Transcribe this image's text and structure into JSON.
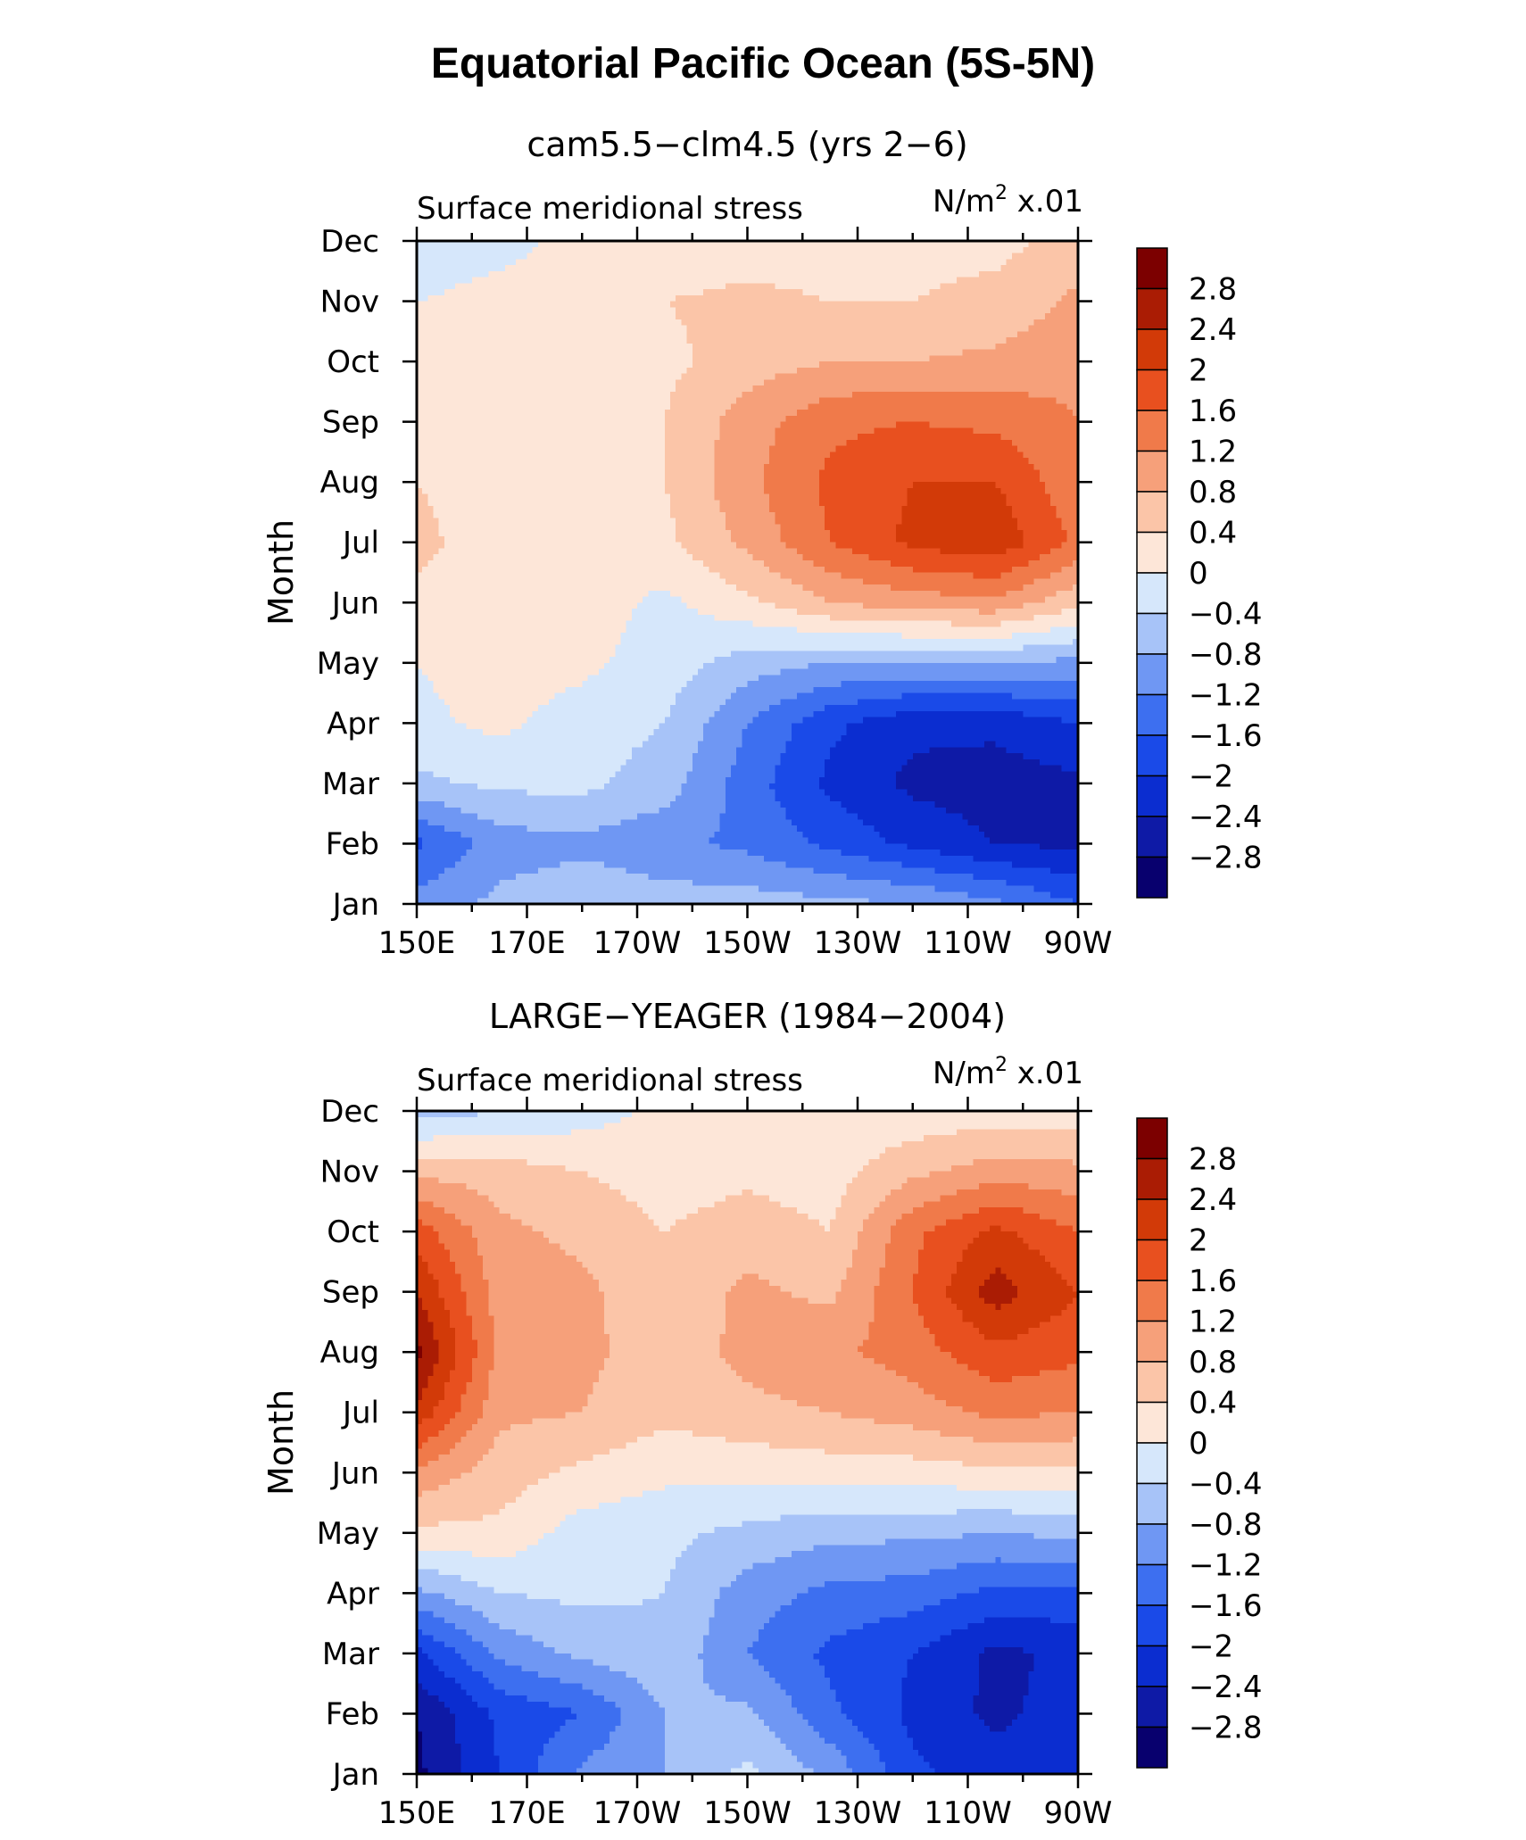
{
  "figure": {
    "title": "Equatorial Pacific Ocean (5S-5N)"
  },
  "chart_data": [
    {
      "type": "heatmap",
      "title": "cam5.5−clm4.5 (yrs 2−6)",
      "left_string": "Surface meridional stress",
      "units_base": "N/m",
      "units_sup": "2",
      "units_scale": " x.01",
      "ylabel": "Month",
      "x_ticks": [
        "150E",
        "170E",
        "170W",
        "150W",
        "130W",
        "110W",
        "90W"
      ],
      "x_tick_lons": [
        150,
        170,
        190,
        210,
        230,
        250,
        270
      ],
      "xlim": [
        150,
        270
      ],
      "y_ticks": [
        "Jan",
        "Feb",
        "Mar",
        "Apr",
        "May",
        "Jun",
        "Jul",
        "Aug",
        "Sep",
        "Oct",
        "Nov",
        "Dec"
      ],
      "ylim": [
        0,
        11
      ],
      "levels": [
        -2.8,
        -2.4,
        -2.0,
        -1.6,
        -1.2,
        -0.8,
        -0.4,
        0,
        0.4,
        0.8,
        1.2,
        1.6,
        2.0,
        2.4,
        2.8
      ],
      "colorbar_labels": [
        "2.8",
        "2.4",
        "2",
        "1.6",
        "1.2",
        "0.8",
        "0.4",
        "0",
        "−0.4",
        "−0.8",
        "−1.2",
        "−1.6",
        "−2",
        "−2.4",
        "−2.8"
      ],
      "colors": [
        "#08006e",
        "#0e1aa6",
        "#0b2dd0",
        "#1a4ae8",
        "#3d6ff0",
        "#6f97f3",
        "#a7c3f8",
        "#d6e7fb",
        "#fde6d8",
        "#fbc5a8",
        "#f6a07a",
        "#f07a4a",
        "#e8501f",
        "#d23a08",
        "#aa1c04",
        "#7c0000"
      ],
      "grid_x": [
        150,
        165,
        180,
        195,
        210,
        225,
        240,
        255,
        270
      ],
      "grid_y": [
        "Jan",
        "Feb",
        "Mar",
        "Apr",
        "May",
        "Jun",
        "Jul",
        "Aug",
        "Sep",
        "Oct",
        "Nov",
        "Dec"
      ],
      "z": [
        [
          -1.0,
          -0.7,
          -0.5,
          -0.6,
          -0.6,
          -0.7,
          -0.8,
          -1.1,
          -1.6
        ],
        [
          -1.7,
          -1.0,
          -0.9,
          -1.1,
          -1.3,
          -1.7,
          -2.1,
          -2.4,
          -2.5
        ],
        [
          -0.5,
          -0.3,
          -0.3,
          -0.6,
          -1.4,
          -2.1,
          -2.5,
          -2.6,
          -2.5
        ],
        [
          -0.1,
          0.1,
          -0.2,
          -0.4,
          -1.2,
          -1.9,
          -2.3,
          -2.3,
          -2.0
        ],
        [
          0.0,
          0.2,
          0.1,
          -0.2,
          -0.6,
          -0.8,
          -0.8,
          -0.8,
          -0.9
        ],
        [
          0.3,
          0.2,
          0.2,
          -0.1,
          0.3,
          0.8,
          1.0,
          1.1,
          0.5
        ],
        [
          0.5,
          0.2,
          0.2,
          0.3,
          0.9,
          1.6,
          2.1,
          2.3,
          1.5
        ],
        [
          0.4,
          0.2,
          0.2,
          0.4,
          1.1,
          1.7,
          2.0,
          2.0,
          1.3
        ],
        [
          0.4,
          0.1,
          0.1,
          0.4,
          1.0,
          1.5,
          1.6,
          1.5,
          1.2
        ],
        [
          0.2,
          0.1,
          0.1,
          0.3,
          0.6,
          0.8,
          0.8,
          0.9,
          1.1
        ],
        [
          0.0,
          0.1,
          0.1,
          0.4,
          0.5,
          0.4,
          0.4,
          0.5,
          0.9
        ],
        [
          -0.2,
          -0.1,
          0.1,
          0.1,
          0.2,
          0.2,
          0.3,
          0.3,
          0.5
        ]
      ]
    },
    {
      "type": "heatmap",
      "title": "LARGE−YEAGER (1984−2004)",
      "left_string": "Surface meridional stress",
      "units_base": "N/m",
      "units_sup": "2",
      "units_scale": " x.01",
      "ylabel": "Month",
      "x_ticks": [
        "150E",
        "170E",
        "170W",
        "150W",
        "130W",
        "110W",
        "90W"
      ],
      "x_tick_lons": [
        150,
        170,
        190,
        210,
        230,
        250,
        270
      ],
      "xlim": [
        150,
        270
      ],
      "y_ticks": [
        "Jan",
        "Feb",
        "Mar",
        "Apr",
        "May",
        "Jun",
        "Jul",
        "Aug",
        "Sep",
        "Oct",
        "Nov",
        "Dec"
      ],
      "ylim": [
        0,
        11
      ],
      "levels": [
        -2.8,
        -2.4,
        -2.0,
        -1.6,
        -1.2,
        -0.8,
        -0.4,
        0,
        0.4,
        0.8,
        1.2,
        1.6,
        2.0,
        2.4,
        2.8
      ],
      "colorbar_labels": [
        "2.8",
        "2.4",
        "2",
        "1.6",
        "1.2",
        "0.8",
        "0.4",
        "0",
        "−0.4",
        "−0.8",
        "−1.2",
        "−1.6",
        "−2",
        "−2.4",
        "−2.8"
      ],
      "colors": [
        "#08006e",
        "#0e1aa6",
        "#0b2dd0",
        "#1a4ae8",
        "#3d6ff0",
        "#6f97f3",
        "#a7c3f8",
        "#d6e7fb",
        "#fde6d8",
        "#fbc5a8",
        "#f6a07a",
        "#f07a4a",
        "#e8501f",
        "#d23a08",
        "#aa1c04",
        "#7c0000"
      ],
      "grid_x": [
        150,
        165,
        180,
        195,
        210,
        225,
        240,
        255,
        270
      ],
      "grid_y": [
        "Jan",
        "Feb",
        "Mar",
        "Apr",
        "May",
        "Jun",
        "Jul",
        "Aug",
        "Sep",
        "Oct",
        "Nov",
        "Dec"
      ],
      "z": [
        [
          -2.9,
          -2.0,
          -1.1,
          -0.8,
          -0.3,
          -0.9,
          -1.9,
          -2.2,
          -2.2
        ],
        [
          -2.8,
          -1.9,
          -1.6,
          -0.8,
          -0.7,
          -1.5,
          -2.1,
          -2.5,
          -2.2
        ],
        [
          -2.1,
          -1.1,
          -0.7,
          -0.5,
          -1.2,
          -1.7,
          -2.0,
          -2.5,
          -2.3
        ],
        [
          -0.9,
          -0.4,
          -0.3,
          -0.4,
          -1.0,
          -1.3,
          -1.4,
          -1.7,
          -1.7
        ],
        [
          0.3,
          0.3,
          -0.2,
          -0.3,
          -0.5,
          -0.7,
          -0.7,
          -0.8,
          -0.7
        ],
        [
          1.1,
          0.6,
          0.3,
          0.1,
          0.1,
          0.2,
          0.2,
          0.3,
          0.3
        ],
        [
          2.3,
          0.9,
          0.8,
          0.5,
          0.7,
          0.8,
          1.0,
          1.3,
          1.2
        ],
        [
          2.9,
          1.1,
          0.9,
          0.6,
          0.9,
          1.1,
          1.4,
          1.9,
          1.7
        ],
        [
          2.4,
          1.0,
          0.9,
          0.5,
          0.9,
          0.7,
          1.6,
          2.6,
          2.0
        ],
        [
          1.8,
          0.9,
          0.7,
          0.4,
          0.6,
          0.4,
          1.5,
          2.1,
          1.6
        ],
        [
          0.7,
          0.6,
          0.4,
          0.2,
          0.3,
          0.2,
          0.7,
          1.0,
          0.9
        ],
        [
          -0.6,
          -0.4,
          -0.2,
          0.1,
          0.1,
          0.2,
          0.1,
          0.2,
          0.2
        ]
      ]
    }
  ]
}
